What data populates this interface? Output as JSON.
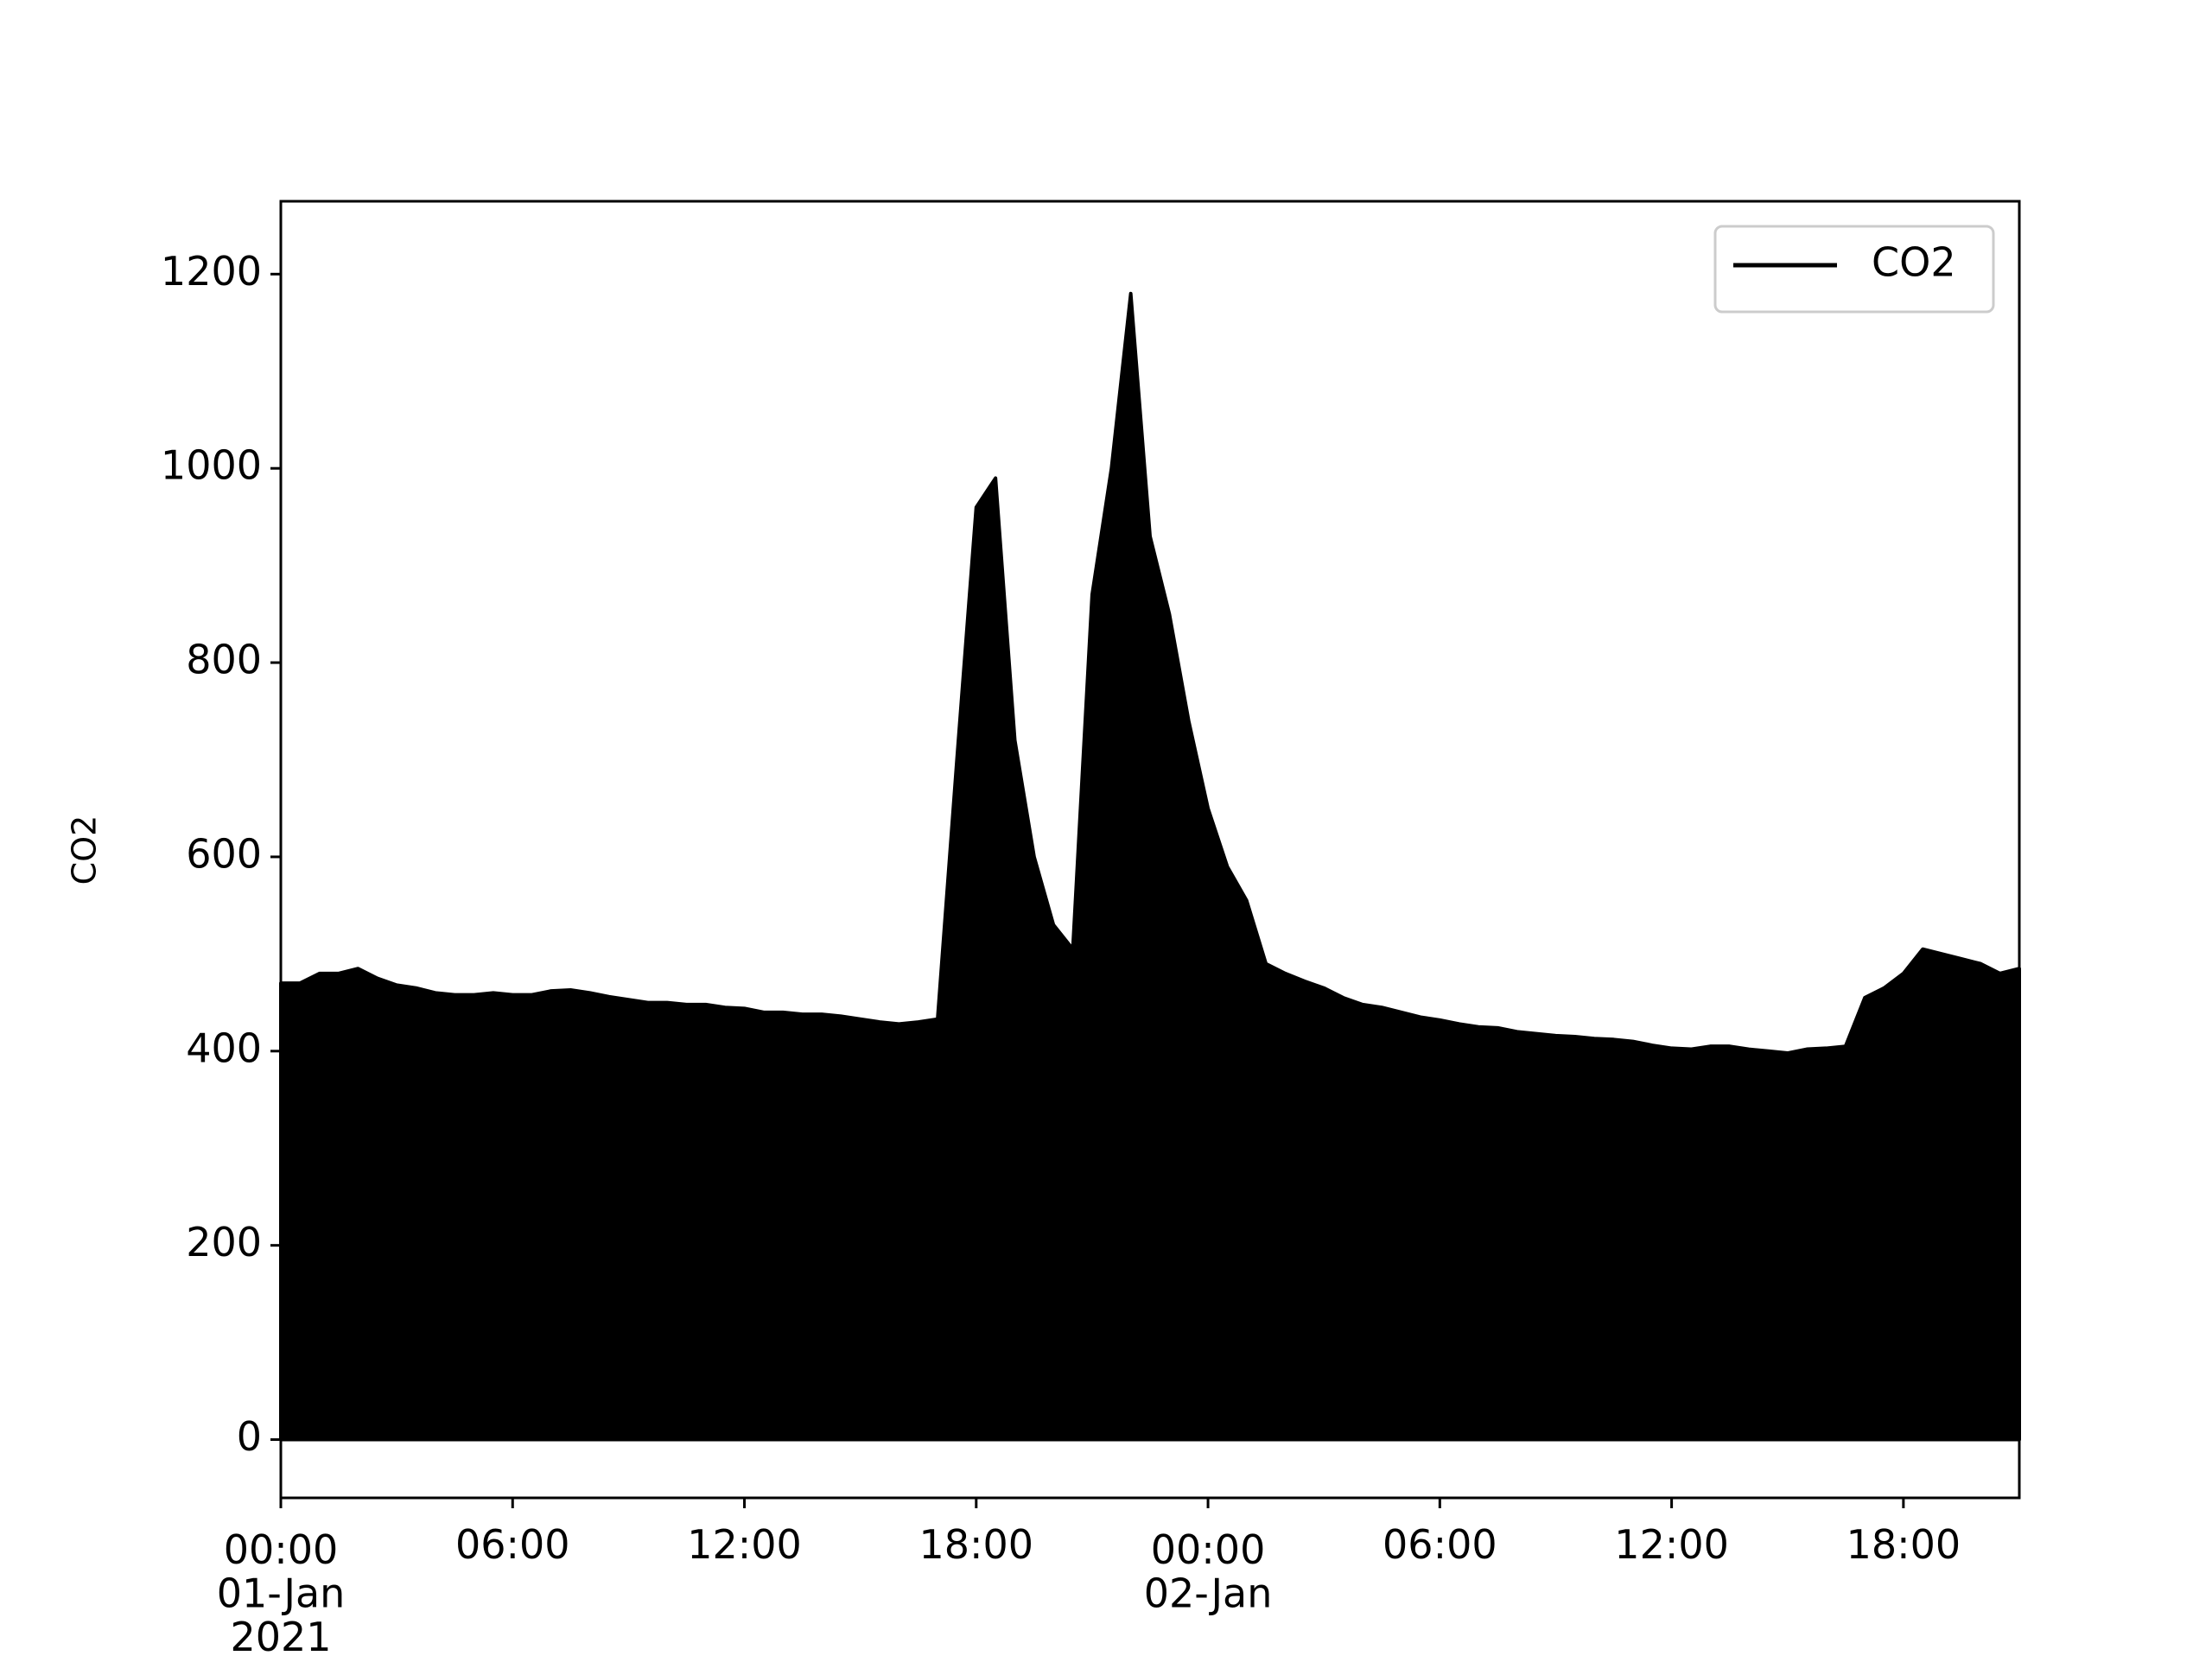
{
  "chart_data": {
    "type": "area",
    "y_label": "CO2",
    "x": [
      "2021-01-01 00:00",
      "2021-01-01 00:30",
      "2021-01-01 01:00",
      "2021-01-01 01:30",
      "2021-01-01 02:00",
      "2021-01-01 02:30",
      "2021-01-01 03:00",
      "2021-01-01 03:30",
      "2021-01-01 04:00",
      "2021-01-01 04:30",
      "2021-01-01 05:00",
      "2021-01-01 05:30",
      "2021-01-01 06:00",
      "2021-01-01 06:30",
      "2021-01-01 07:00",
      "2021-01-01 07:30",
      "2021-01-01 08:00",
      "2021-01-01 08:30",
      "2021-01-01 09:00",
      "2021-01-01 09:30",
      "2021-01-01 10:00",
      "2021-01-01 10:30",
      "2021-01-01 11:00",
      "2021-01-01 11:30",
      "2021-01-01 12:00",
      "2021-01-01 12:30",
      "2021-01-01 13:00",
      "2021-01-01 13:30",
      "2021-01-01 14:00",
      "2021-01-01 14:30",
      "2021-01-01 15:00",
      "2021-01-01 15:30",
      "2021-01-01 16:00",
      "2021-01-01 16:30",
      "2021-01-01 17:00",
      "2021-01-01 17:30",
      "2021-01-01 18:00",
      "2021-01-01 18:30",
      "2021-01-01 19:00",
      "2021-01-01 19:30",
      "2021-01-01 20:00",
      "2021-01-01 20:30",
      "2021-01-01 21:00",
      "2021-01-01 21:30",
      "2021-01-01 22:00",
      "2021-01-01 22:30",
      "2021-01-01 23:00",
      "2021-01-01 23:30",
      "2021-01-02 00:00",
      "2021-01-02 00:30",
      "2021-01-02 01:00",
      "2021-01-02 01:30",
      "2021-01-02 02:00",
      "2021-01-02 02:30",
      "2021-01-02 03:00",
      "2021-01-02 03:30",
      "2021-01-02 04:00",
      "2021-01-02 04:30",
      "2021-01-02 05:00",
      "2021-01-02 05:30",
      "2021-01-02 06:00",
      "2021-01-02 06:30",
      "2021-01-02 07:00",
      "2021-01-02 07:30",
      "2021-01-02 08:00",
      "2021-01-02 08:30",
      "2021-01-02 09:00",
      "2021-01-02 09:30",
      "2021-01-02 10:00",
      "2021-01-02 10:30",
      "2021-01-02 11:00",
      "2021-01-02 11:30",
      "2021-01-02 12:00",
      "2021-01-02 12:30",
      "2021-01-02 13:00",
      "2021-01-02 13:30",
      "2021-01-02 14:00",
      "2021-01-02 14:30",
      "2021-01-02 15:00",
      "2021-01-02 15:30",
      "2021-01-02 16:00",
      "2021-01-02 16:30",
      "2021-01-02 17:00",
      "2021-01-02 17:30",
      "2021-01-02 18:00",
      "2021-01-02 18:30",
      "2021-01-02 19:00",
      "2021-01-02 19:30",
      "2021-01-02 20:00",
      "2021-01-02 20:30",
      "2021-01-02 21:00"
    ],
    "series": [
      {
        "name": "CO2",
        "color": "#000000",
        "values": [
          470,
          470,
          480,
          480,
          485,
          475,
          468,
          465,
          460,
          458,
          458,
          460,
          458,
          458,
          462,
          463,
          460,
          456,
          453,
          450,
          450,
          448,
          448,
          445,
          444,
          440,
          440,
          438,
          438,
          436,
          433,
          430,
          428,
          430,
          433,
          700,
          960,
          990,
          720,
          600,
          530,
          505,
          870,
          1000,
          1180,
          930,
          850,
          740,
          650,
          590,
          555,
          490,
          480,
          472,
          465,
          455,
          448,
          445,
          440,
          435,
          432,
          428,
          425,
          424,
          420,
          418,
          416,
          415,
          413,
          412,
          410,
          406,
          403,
          402,
          405,
          405,
          402,
          400,
          398,
          402,
          403,
          405,
          455,
          465,
          480,
          505,
          500,
          495,
          490,
          480,
          485
        ]
      }
    ],
    "xlim": [
      "2021-01-01 00:00",
      "2021-01-02 21:00"
    ],
    "xticks": [
      {
        "value": "2021-01-01 00:00",
        "label": "00:00\n01-Jan\n2021"
      },
      {
        "value": "2021-01-01 06:00",
        "label": "06:00"
      },
      {
        "value": "2021-01-01 12:00",
        "label": "12:00"
      },
      {
        "value": "2021-01-01 18:00",
        "label": "18:00"
      },
      {
        "value": "2021-01-02 00:00",
        "label": "00:00\n02-Jan"
      },
      {
        "value": "2021-01-02 06:00",
        "label": "06:00"
      },
      {
        "value": "2021-01-02 12:00",
        "label": "12:00"
      },
      {
        "value": "2021-01-02 18:00",
        "label": "18:00"
      }
    ],
    "ylim": [
      -60,
      1275
    ],
    "yticks": [
      0,
      200,
      400,
      600,
      800,
      1000,
      1200
    ],
    "grid": false,
    "legend": "upper right"
  }
}
